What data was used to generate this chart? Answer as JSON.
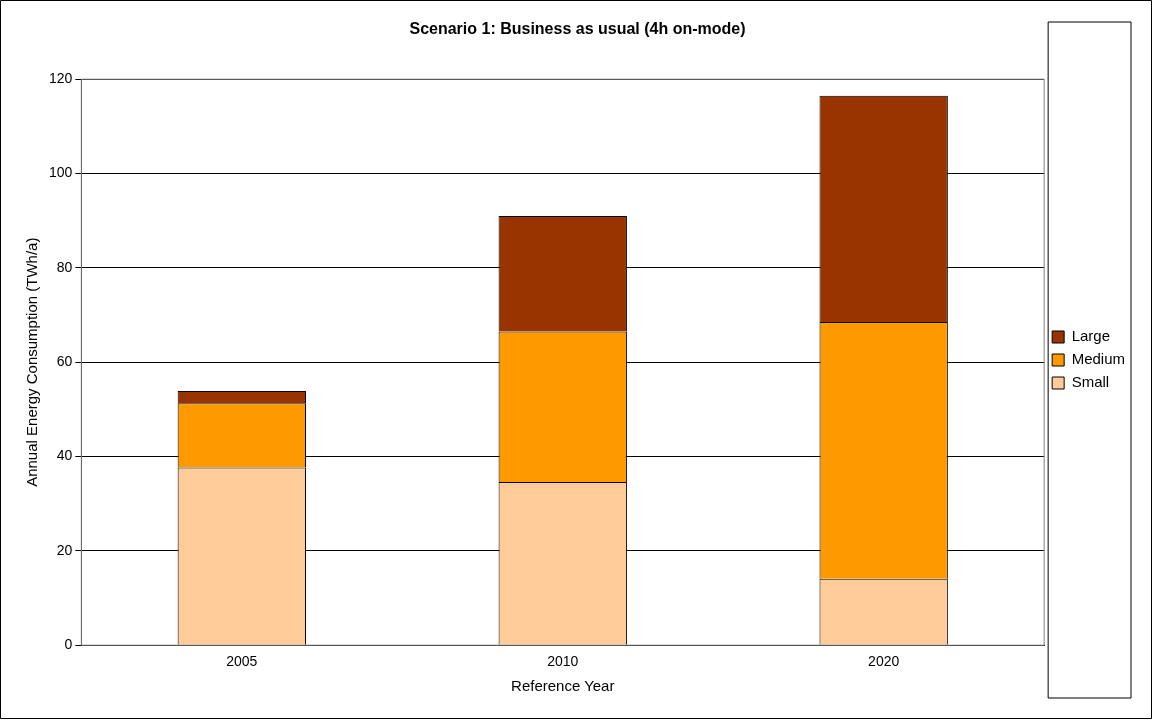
{
  "chart_data": {
    "type": "bar",
    "title": "Scenario 1: Business as usual (4h on-mode)",
    "xlabel": "Reference Year",
    "ylabel": "Annual Energy Consumption (TWh/a)",
    "categories": [
      "2005",
      "2010",
      "2020"
    ],
    "stacked": true,
    "series": [
      {
        "name": "Small",
        "color": "#ffcc99",
        "values": [
          37.7,
          34.6,
          14.1
        ]
      },
      {
        "name": "Medium",
        "color": "#ff9900",
        "values": [
          13.6,
          31.9,
          54.4
        ]
      },
      {
        "name": "Large",
        "color": "#993300",
        "values": [
          2.6,
          24.5,
          48.0
        ]
      }
    ],
    "ylim": [
      0,
      120
    ],
    "yticks": [
      0,
      20,
      40,
      60,
      80,
      100,
      120
    ],
    "grid": "y",
    "legend": "right"
  }
}
